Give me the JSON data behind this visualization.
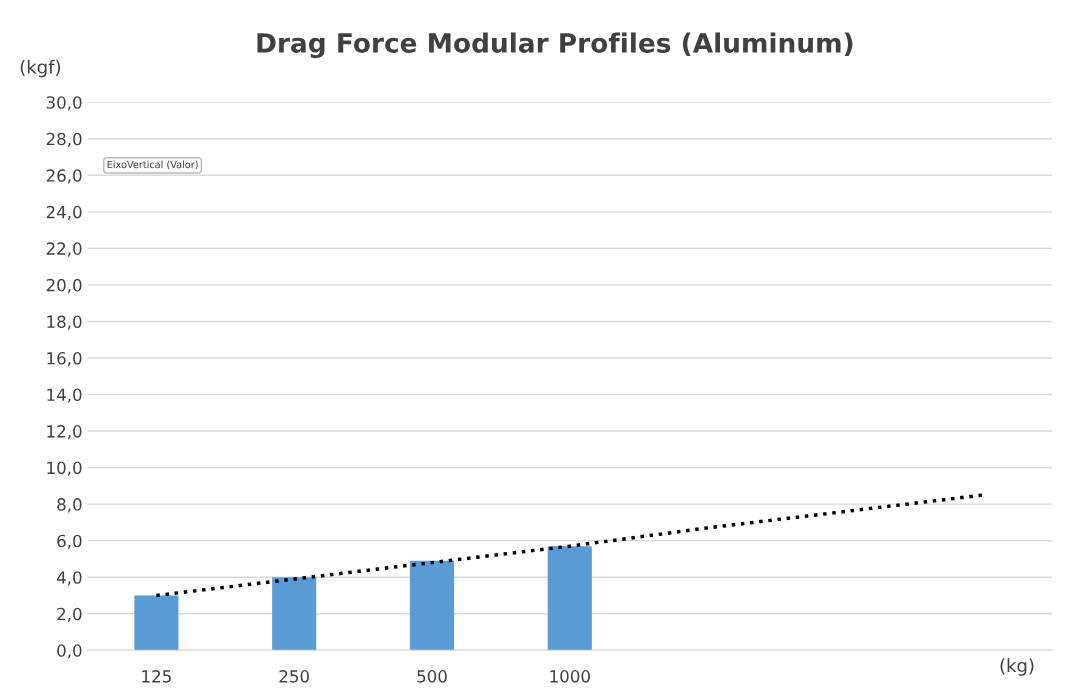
{
  "chart_data": {
    "type": "bar",
    "title": "Drag Force Modular Profiles (Aluminum)",
    "xlabel": "(kg)",
    "ylabel": "(kgf)",
    "categories": [
      "125",
      "250",
      "500",
      "1000",
      null,
      null,
      null
    ],
    "series": [
      {
        "color": "#5b9bd5",
        "values": [
          3.0,
          4.0,
          4.9,
          5.7,
          null,
          null,
          null
        ]
      },
      {
        "type": "line",
        "color": "#000000",
        "line_style": "dotted",
        "marker": "none",
        "values": [
          3.0,
          3.9,
          4.8,
          5.7,
          6.7,
          7.6,
          8.5
        ]
      }
    ],
    "ylim": [
      0,
      30
    ],
    "yticks": [
      {
        "value": 0,
        "label": "0,0"
      },
      {
        "value": 2,
        "label": "2,0"
      },
      {
        "value": 4,
        "label": "4,0"
      },
      {
        "value": 6,
        "label": "6,0"
      },
      {
        "value": 8,
        "label": "8,0"
      },
      {
        "value": 10,
        "label": "10,0"
      },
      {
        "value": 12,
        "label": "12,0"
      },
      {
        "value": 14,
        "label": "14,0"
      },
      {
        "value": 16,
        "label": "16,0"
      },
      {
        "value": 18,
        "label": "18,0"
      },
      {
        "value": 20,
        "label": "20,0"
      },
      {
        "value": 22,
        "label": "22,0"
      },
      {
        "value": 24,
        "label": "24,0"
      },
      {
        "value": 26,
        "label": "26,0"
      },
      {
        "value": 28,
        "label": "28,0"
      },
      {
        "value": 30,
        "label": "30,0"
      }
    ],
    "grid": "y",
    "legend": false,
    "annotations": [
      "EixoVertical (Valor)"
    ]
  }
}
